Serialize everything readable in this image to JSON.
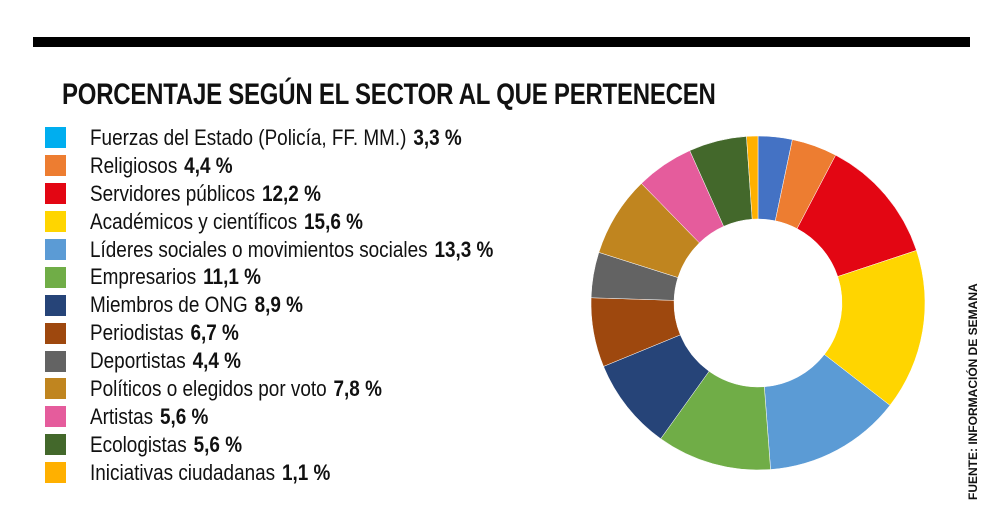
{
  "chart_data": {
    "type": "donut",
    "title": "PORCENTAJE SEGÚN EL SECTOR AL QUE PERTENECEN",
    "source": "FUENTE: INFORMACIÓN DE SEMANA",
    "legend_placement": "left",
    "slices": [
      {
        "label": "Fuerzas del Estado (Policía, FF. MM.)",
        "value": 3.3,
        "display": "3,3 %",
        "color": "#00aeef",
        "slice_color": "#4472c4"
      },
      {
        "label": "Religiosos",
        "value": 4.4,
        "display": "4,4 %",
        "color": "#ed7d31"
      },
      {
        "label": "Servidores públicos",
        "value": 12.2,
        "display": "12,2 %",
        "color": "#e30613"
      },
      {
        "label": "Académicos y científicos",
        "value": 15.6,
        "display": "15,6 %",
        "color": "#ffd500"
      },
      {
        "label": "Líderes sociales o movimientos sociales",
        "value": 13.3,
        "display": "13,3 %",
        "color": "#5b9bd5"
      },
      {
        "label": "Empresarios",
        "value": 11.1,
        "display": "11,1 %",
        "color": "#70ad47"
      },
      {
        "label": "Miembros de ONG",
        "value": 8.9,
        "display": "8,9 %",
        "color": "#264478"
      },
      {
        "label": "Periodistas",
        "value": 6.7,
        "display": "6,7 %",
        "color": "#9e480e"
      },
      {
        "label": "Deportistas",
        "value": 4.4,
        "display": "4,4 %",
        "color": "#636363"
      },
      {
        "label": "Políticos o elegidos por voto",
        "value": 7.8,
        "display": "7,8 %",
        "color": "#c0851f"
      },
      {
        "label": "Artistas",
        "value": 5.6,
        "display": "5,6 %",
        "color": "#e55c9c"
      },
      {
        "label": "Ecologistas",
        "value": 5.6,
        "display": "5,6 %",
        "color": "#43682b"
      },
      {
        "label": "Iniciativas ciudadanas",
        "value": 1.1,
        "display": "1,1 %",
        "color": "#ffb000"
      }
    ]
  }
}
